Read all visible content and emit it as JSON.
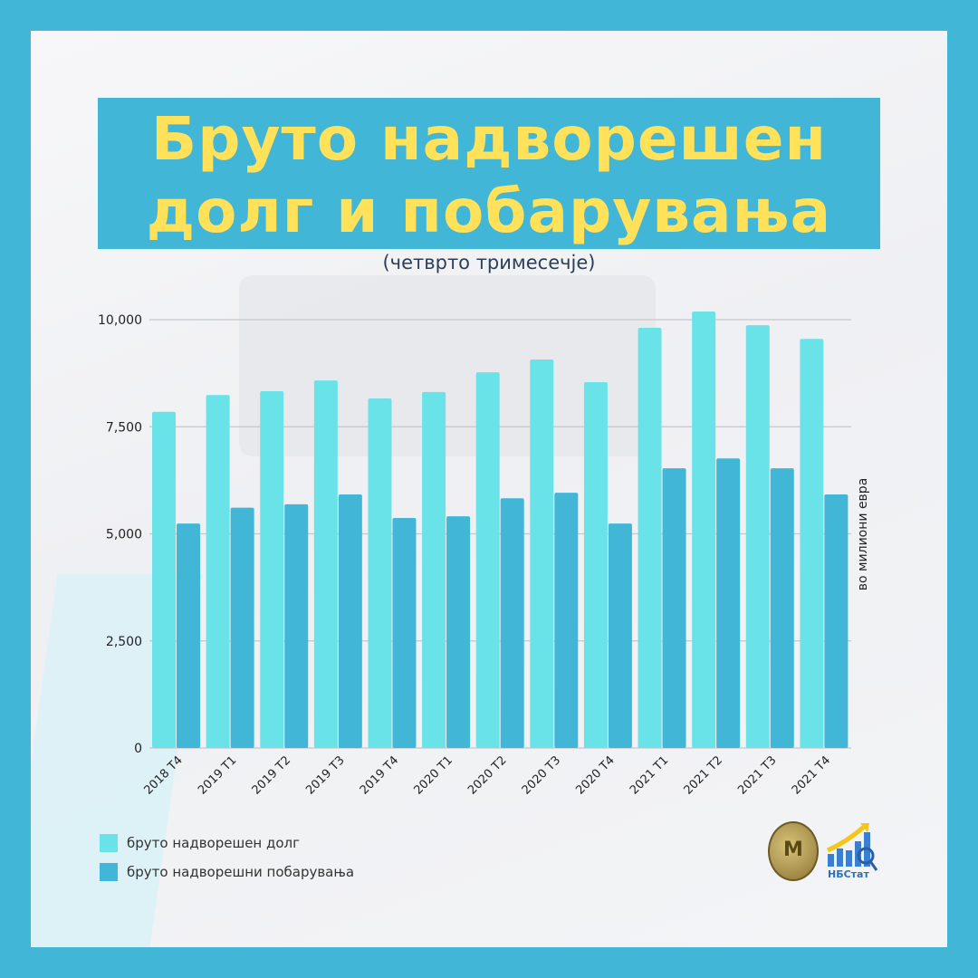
{
  "title_line1": "Бруто надворешен",
  "title_line2": "долг и побарувања",
  "subtitle": "(четврто тримесечје)",
  "logo_text": "НБСтат",
  "colors": {
    "frame": "#41B6D7",
    "title_text": "#FFE15A",
    "series1": "#6AE3E8",
    "series2": "#41B6D7"
  },
  "chart_data": {
    "type": "bar",
    "title": "Бруто надворешен долг и побарувања",
    "ylabel": "во милиони евра",
    "xlabel": "",
    "ylim": [
      0,
      10000
    ],
    "yticks": [
      0,
      2500,
      5000,
      7500,
      10000
    ],
    "ytick_labels": [
      "0",
      "2,500",
      "5,000",
      "7,500",
      "10,000"
    ],
    "grid": true,
    "legend_position": "bottom-left",
    "categories": [
      "2018 Т4",
      "2019 Т1",
      "2019 Т2",
      "2019 Т3",
      "2019 Т4",
      "2020 Т1",
      "2020 Т2",
      "2020 Т3",
      "2020 Т4",
      "2021 Т1",
      "2021 Т2",
      "2021 Т3",
      "2021 Т4"
    ],
    "series": [
      {
        "name": "бруто надворешен долг",
        "color": "#6AE3E8",
        "values": [
          7850,
          8240,
          8330,
          8580,
          8160,
          8310,
          8770,
          9070,
          8540,
          9810,
          10190,
          9870,
          9550
        ]
      },
      {
        "name": "бруто надворешни побарувања",
        "color": "#41B6D7",
        "values": [
          5240,
          5610,
          5690,
          5920,
          5370,
          5410,
          5830,
          5960,
          5240,
          6530,
          6760,
          6530,
          5920
        ]
      }
    ]
  }
}
